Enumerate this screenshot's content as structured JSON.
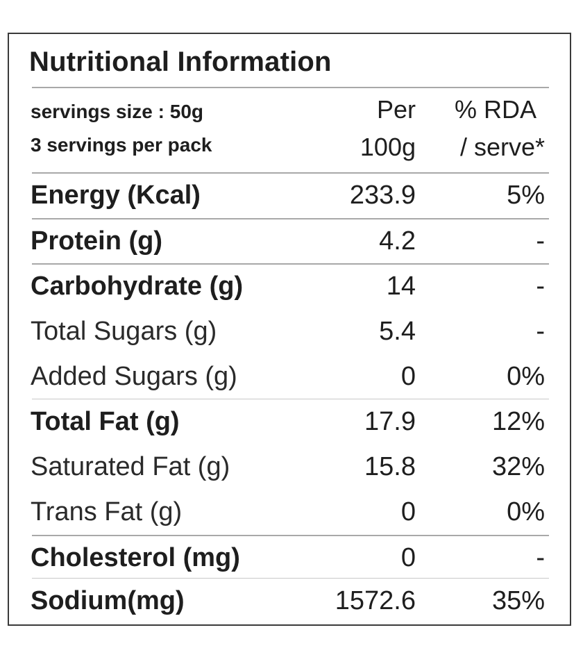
{
  "title": "Nutritional Information",
  "header": {
    "serving_size": "servings size : 50g",
    "servings_per_pack": "3 servings per pack",
    "col_per_line1": "Per",
    "col_per_line2": "100g",
    "col_rda_line1": "% RDA",
    "col_rda_line2": "/ serve*"
  },
  "rows": [
    {
      "name": "Energy (Kcal)",
      "per100": "233.9",
      "rda": "5%",
      "style": "bold"
    },
    {
      "name": "Protein (g)",
      "per100": "4.2",
      "rda": "-",
      "style": "bold"
    },
    {
      "name": "Carbohydrate (g)",
      "per100": "14",
      "rda": "-",
      "style": "bold"
    },
    {
      "name": "Total Sugars (g)",
      "per100": "5.4",
      "rda": "-",
      "style": "regular"
    },
    {
      "name": "Added Sugars (g)",
      "per100": "0",
      "rda": "0%",
      "style": "regular"
    },
    {
      "name": "Total Fat (g)",
      "per100": "17.9",
      "rda": "12%",
      "style": "bold"
    },
    {
      "name": "Saturated Fat (g)",
      "per100": "15.8",
      "rda": "32%",
      "style": "regular"
    },
    {
      "name": "Trans Fat (g)",
      "per100": "0",
      "rda": "0%",
      "style": "regular"
    },
    {
      "name": "Cholesterol (mg)",
      "per100": "0",
      "rda": "-",
      "style": "bold"
    },
    {
      "name": "Sodium(mg)",
      "per100": "1572.6",
      "rda": "35%",
      "style": "bold"
    }
  ]
}
